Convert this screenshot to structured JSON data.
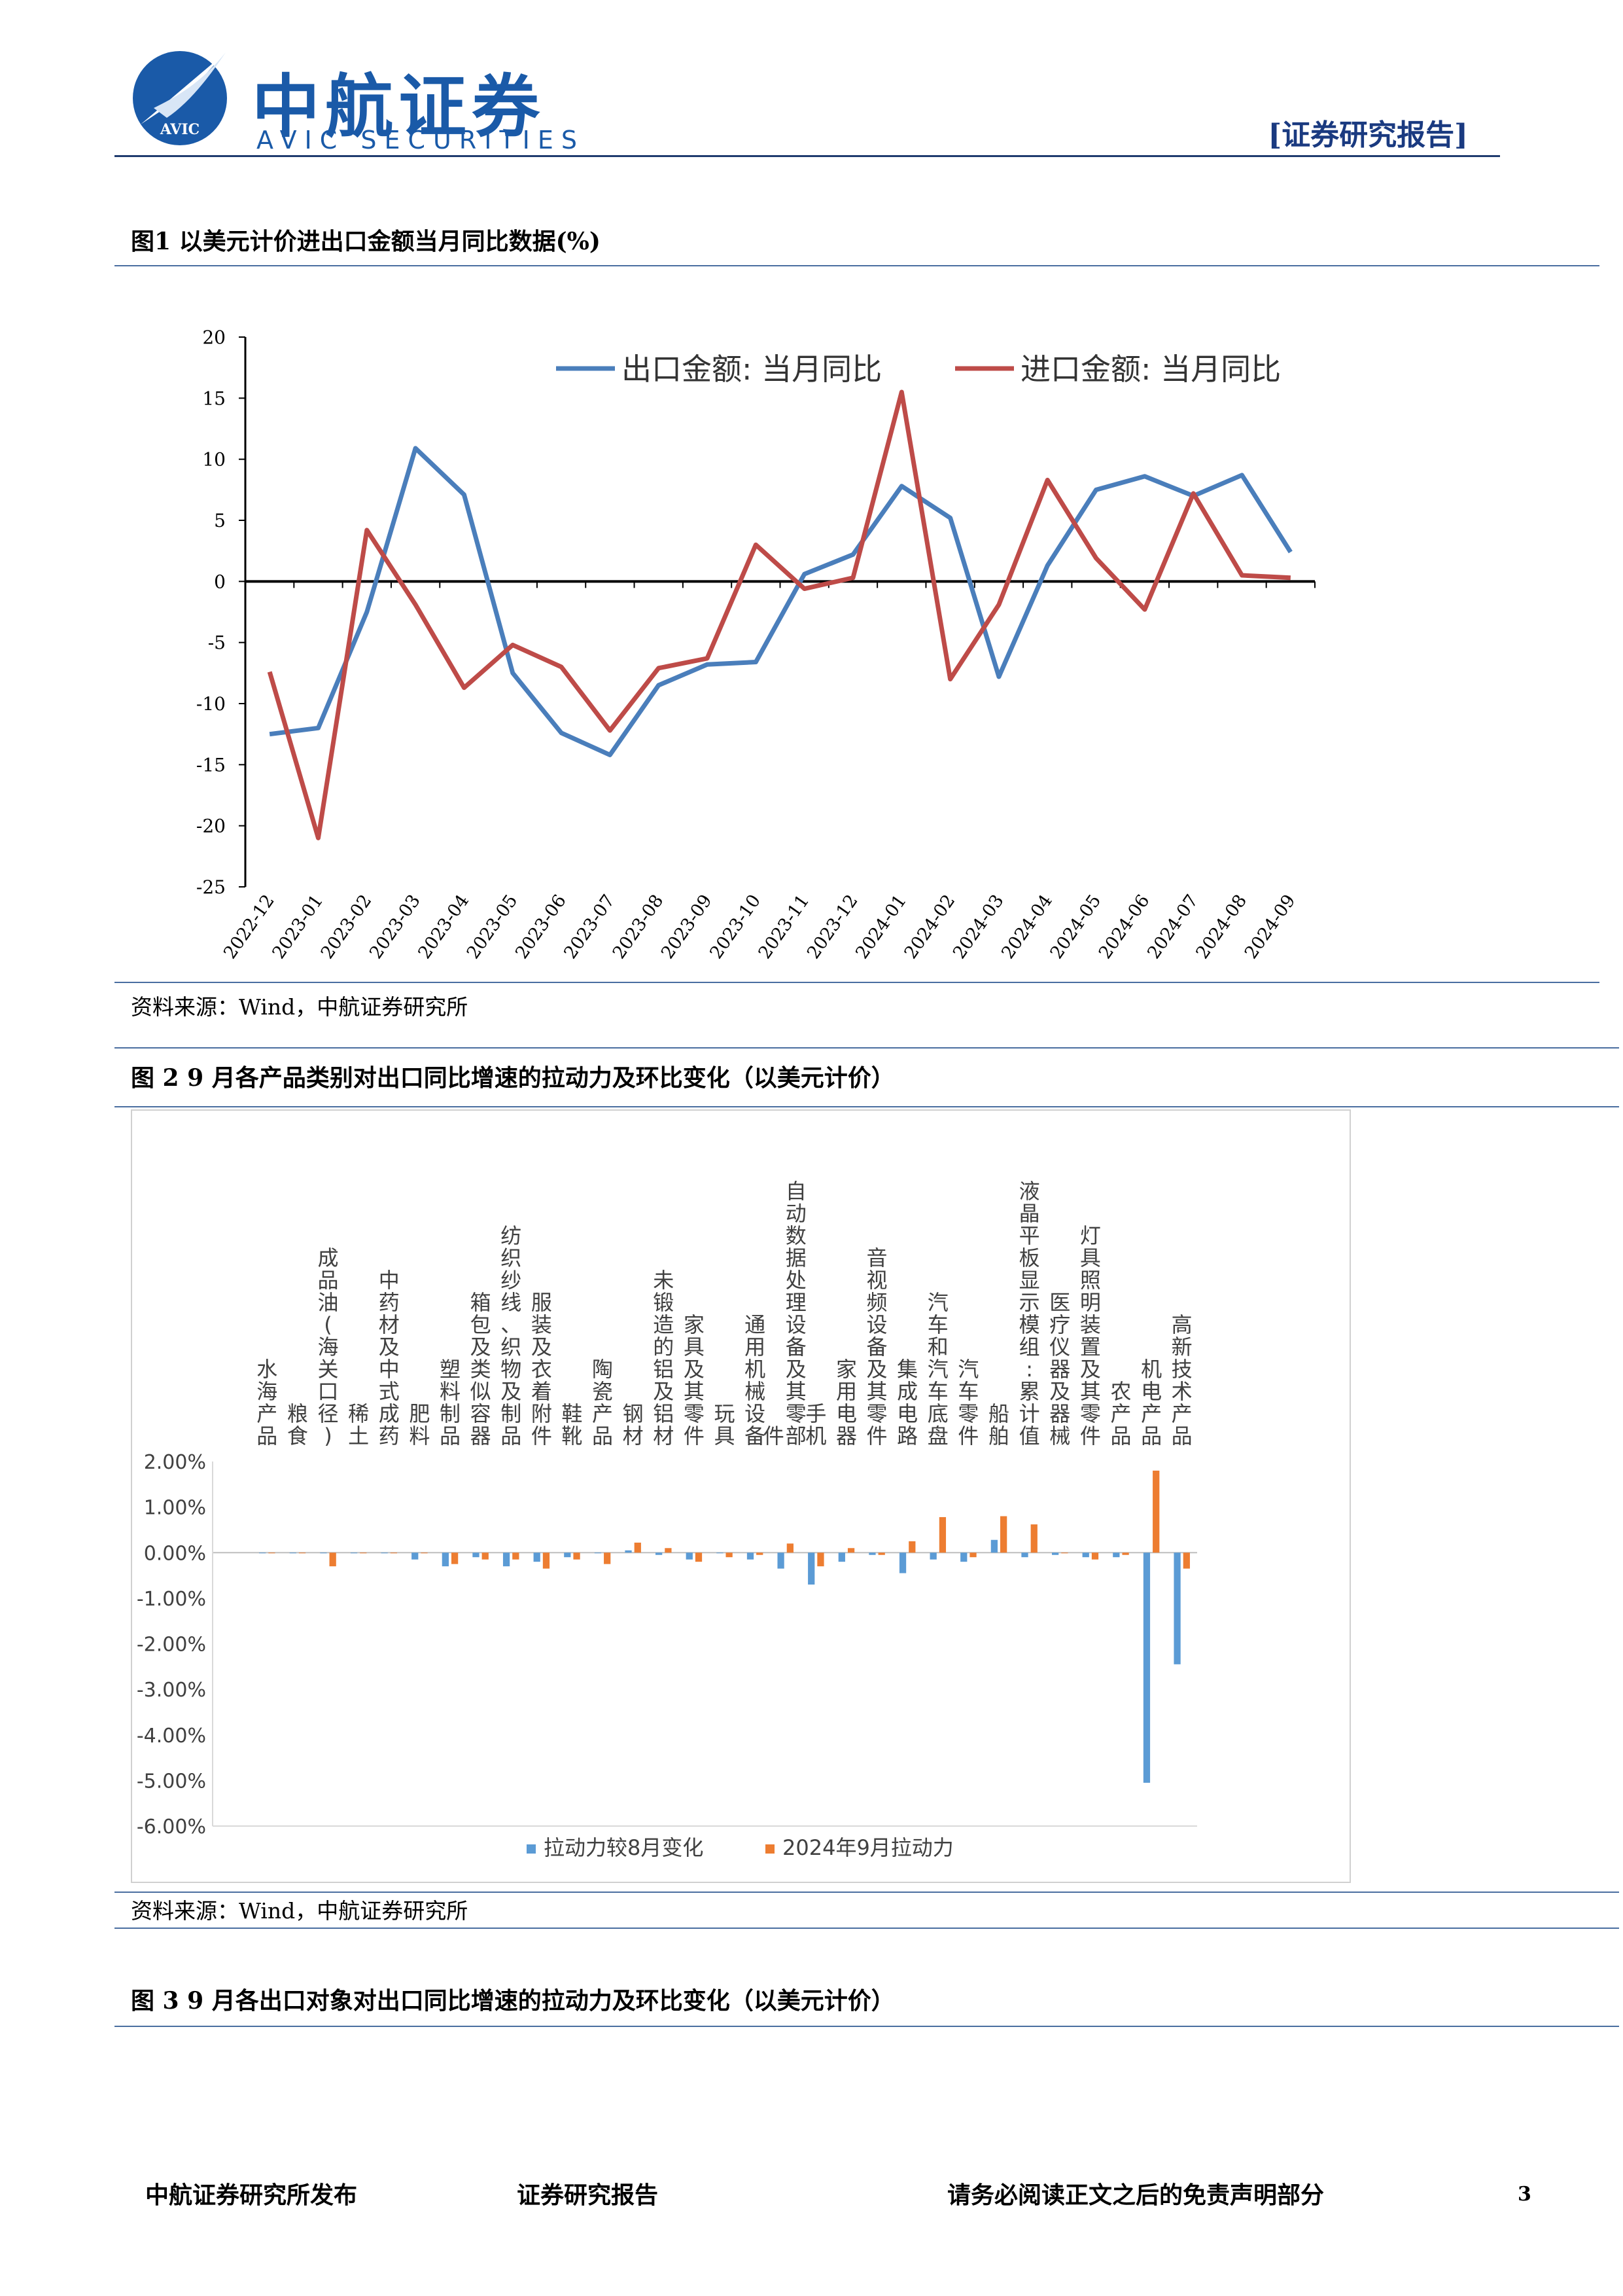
{
  "header": {
    "logo_cn": "中航证券",
    "logo_en": "AVIC SECURITIES",
    "logo_badge": "AVIC",
    "report_tag": "[证券研究报告]",
    "brand_color": "#1a5aa8"
  },
  "figure1": {
    "title": "图1  以美元计价进出口金额当月同比数据(%)",
    "source": "资料来源：Wind，中航证券研究所"
  },
  "figure2": {
    "title": "图 2   9 月各产品类别对出口同比增速的拉动力及环比变化（以美元计价）",
    "source": "资料来源：Wind，中航证券研究所"
  },
  "figure3": {
    "title": "图 3   9 月各出口对象对出口同比增速的拉动力及环比变化（以美元计价）"
  },
  "footer": {
    "publisher": "中航证券研究所发布",
    "type": "证券研究报告",
    "disclaimer": "请务必阅读正文之后的免责声明部分",
    "page": "3"
  },
  "chart_data": [
    {
      "type": "line",
      "title": "",
      "x": [
        "2022-12",
        "2023-01",
        "2023-02",
        "2023-03",
        "2023-04",
        "2023-05",
        "2023-06",
        "2023-07",
        "2023-08",
        "2023-09",
        "2023-10",
        "2023-11",
        "2023-12",
        "2024-01",
        "2024-02",
        "2024-03",
        "2024-04",
        "2024-05",
        "2024-06",
        "2024-07",
        "2024-08",
        "2024-09"
      ],
      "series": [
        {
          "name": "出口金额: 当月同比",
          "color": "#4a7ebb",
          "values": [
            -12.5,
            -12.0,
            -2.5,
            10.9,
            7.1,
            -7.5,
            -12.4,
            -14.2,
            -8.5,
            -6.8,
            -6.6,
            0.6,
            2.2,
            7.8,
            5.2,
            -7.8,
            1.3,
            7.5,
            8.6,
            7.0,
            8.7,
            2.4
          ]
        },
        {
          "name": "进口金额: 当月同比",
          "color": "#be4b48",
          "values": [
            -7.4,
            -21.0,
            4.2,
            -1.9,
            -8.7,
            -5.2,
            -7.0,
            -12.2,
            -7.1,
            -6.3,
            3.0,
            -0.6,
            0.3,
            15.5,
            -8.0,
            -1.9,
            8.3,
            1.9,
            -2.3,
            7.2,
            0.5,
            0.3
          ]
        }
      ],
      "ylim": [
        -25,
        20
      ],
      "yticks": [
        20,
        15,
        10,
        5,
        0,
        -5,
        -10,
        -15,
        -20,
        -25
      ],
      "grid": false,
      "legend": "top"
    },
    {
      "type": "bar",
      "title": "",
      "categories": [
        "水海产品",
        "粮食",
        "成品油(海关口径)",
        "稀土",
        "中药材及中式成药",
        "肥料",
        "塑料制品",
        "箱包及类似容器",
        "纺织纱线、织物及制品",
        "服装及衣着附件",
        "鞋靴",
        "陶瓷产品",
        "钢材",
        "未锻造的铝及铝材",
        "家具及其零件",
        "玩具",
        "通用机械设备",
        "自动数据处理设备及其零部件",
        "手机",
        "家用电器",
        "音视频设备及其零件",
        "集成电路",
        "汽车和汽车底盘",
        "汽车零件",
        "船舶",
        "液晶平板显示模组:累计值",
        "医疗仪器及器械",
        "灯具照明装置及其零件",
        "农产品",
        "机电产品",
        "高新技术产品"
      ],
      "series": [
        {
          "name": "拉动力较8月变化",
          "color": "#5b9bd5",
          "values": [
            0.0,
            0.0,
            0.0,
            0.0,
            0.0,
            -0.15,
            -0.3,
            -0.1,
            -0.3,
            -0.2,
            -0.1,
            0.0,
            0.05,
            -0.05,
            -0.15,
            0.0,
            -0.15,
            -0.35,
            -0.7,
            -0.2,
            -0.05,
            -0.45,
            -0.15,
            -0.2,
            0.28,
            -0.1,
            -0.05,
            -0.1,
            -0.1,
            -5.05,
            -2.45
          ]
        },
        {
          "name": "2024年9月拉动力",
          "color": "#ed7d31",
          "values": [
            0.0,
            0.0,
            -0.3,
            0.0,
            0.0,
            0.0,
            -0.25,
            -0.15,
            -0.15,
            -0.35,
            -0.15,
            -0.25,
            0.22,
            0.1,
            -0.2,
            -0.1,
            -0.05,
            0.2,
            -0.3,
            0.1,
            -0.05,
            0.25,
            0.78,
            -0.1,
            0.8,
            0.62,
            0.0,
            -0.15,
            -0.05,
            1.8,
            -0.35
          ]
        }
      ],
      "yticks": [
        "2.00%",
        "1.00%",
        "0.00%",
        "-1.00%",
        "-2.00%",
        "-3.00%",
        "-4.00%",
        "-5.00%",
        "-6.00%"
      ],
      "ylim": [
        -6,
        2
      ],
      "grid": false,
      "legend": "bottom"
    }
  ]
}
